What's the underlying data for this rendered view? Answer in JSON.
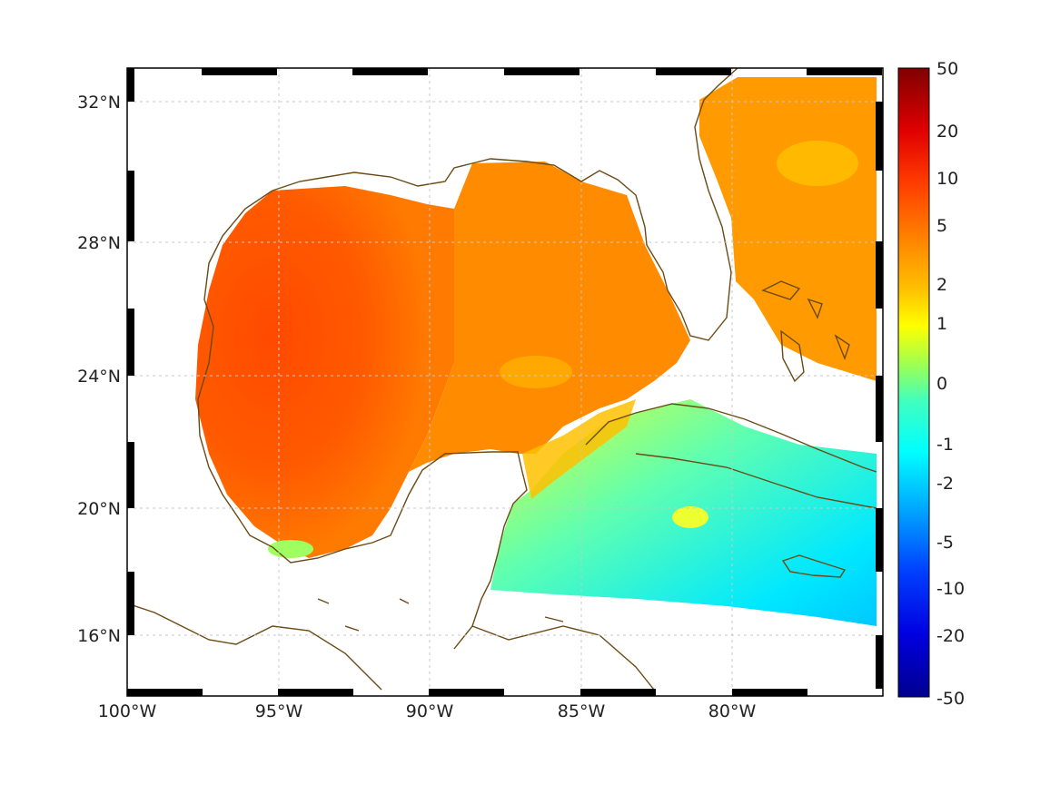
{
  "map": {
    "lon_range": [
      -100,
      -75
    ],
    "lat_range": [
      14.2,
      32.9
    ],
    "grid": true,
    "x_ticks": [
      {
        "value": -100,
        "label": "100°W"
      },
      {
        "value": -95,
        "label": "95°W"
      },
      {
        "value": -90,
        "label": "90°W"
      },
      {
        "value": -85,
        "label": "85°W"
      },
      {
        "value": -80,
        "label": "80°W"
      }
    ],
    "y_ticks": [
      {
        "value": 32,
        "label": "32°N"
      },
      {
        "value": 28,
        "label": "28°N"
      },
      {
        "value": 24,
        "label": "24°N"
      },
      {
        "value": 20,
        "label": "20°N"
      },
      {
        "value": 16,
        "label": "16°N"
      }
    ],
    "coastline_color": "#6b4a14"
  },
  "colorbar": {
    "ticks": [
      "50",
      "20",
      "10",
      "5",
      "2",
      "1",
      "0",
      "-1",
      "-2",
      "-5",
      "-10",
      "-20",
      "-50"
    ],
    "colormap": [
      "#7f0000",
      "#d40000",
      "#ff3a00",
      "#ff8000",
      "#ffbf00",
      "#ffff00",
      "#bfff40",
      "#40ffbf",
      "#00ffff",
      "#00bfff",
      "#0080ff",
      "#0000ff",
      "#00008f"
    ]
  }
}
